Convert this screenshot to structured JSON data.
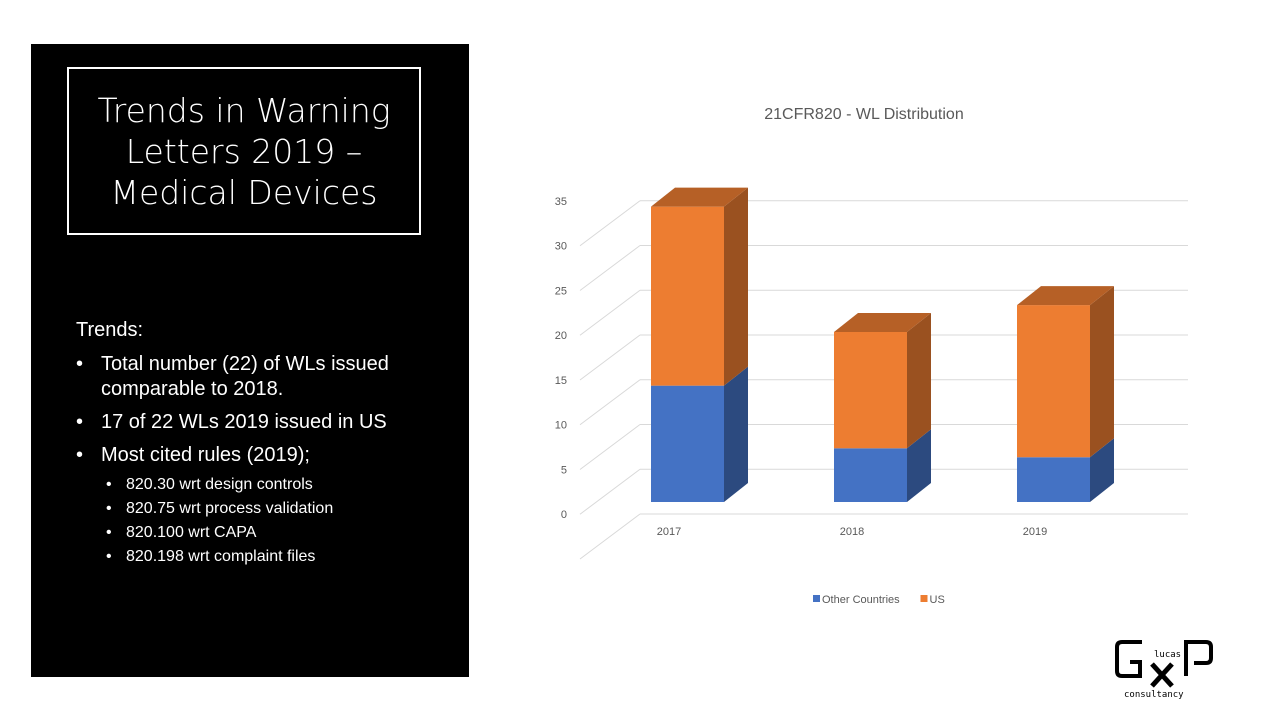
{
  "slide": {
    "title_lines": [
      "Trends in Warning",
      "Letters 2019 –",
      "Medical Devices"
    ],
    "trends_heading": "Trends:",
    "bullets": [
      "Total number (22) of WLs issued comparable to 2018.",
      "17 of 22 WLs 2019 issued in US",
      "Most cited rules (2019);"
    ],
    "sub_bullets": [
      "820.30 wrt design controls",
      "820.75 wrt process validation",
      "820.100 wrt CAPA",
      "820.198 wrt complaint files"
    ],
    "logo_text": [
      "lucas",
      "consultancy"
    ]
  },
  "chart_data": {
    "type": "bar",
    "style": "3d-stacked-column",
    "title": "21CFR820 - WL Distribution",
    "categories": [
      "2017",
      "2018",
      "2019"
    ],
    "series": [
      {
        "name": "Other Countries",
        "values": [
          13,
          6,
          5
        ],
        "color": "#4472C4"
      },
      {
        "name": "US",
        "values": [
          20,
          13,
          17
        ],
        "color": "#ED7D31"
      }
    ],
    "yticks": [
      "0",
      "5",
      "10",
      "15",
      "20",
      "25",
      "30",
      "35"
    ],
    "ylim": [
      0,
      35
    ],
    "grid": true,
    "legend": "bottom"
  }
}
